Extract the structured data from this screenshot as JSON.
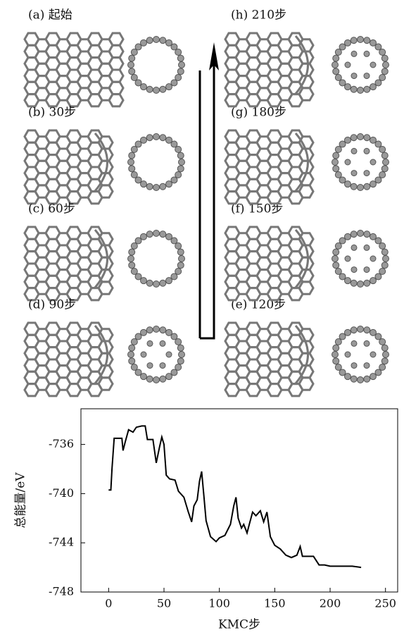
{
  "panels": [
    "(a) 起始",
    "(b) 30步",
    "(c) 60步",
    "(d) 90步",
    "(e) 120步",
    "(f) 150步",
    "(g) 180步",
    "(h) 210步"
  ],
  "chart_data": {
    "type": "line",
    "x_label": "KMC步",
    "y_label": "总能量/eV",
    "color": "#000000",
    "x": [
      0,
      2,
      3,
      5,
      12,
      13,
      15,
      18,
      22,
      25,
      30,
      33,
      35,
      40,
      43,
      46,
      48,
      50,
      52,
      55,
      60,
      63,
      68,
      72,
      75,
      77,
      80,
      82,
      84,
      86,
      88,
      92,
      97,
      100,
      105,
      110,
      113,
      115,
      117,
      120,
      122,
      125,
      127,
      130,
      133,
      137,
      140,
      143,
      146,
      150,
      155,
      160,
      165,
      170,
      173,
      175,
      185,
      190,
      195,
      200,
      210,
      220,
      228
    ],
    "values": [
      -739.7,
      -739.7,
      -738,
      -735.5,
      -735.5,
      -736.5,
      -735.8,
      -734.8,
      -735.0,
      -734.6,
      -734.5,
      -734.5,
      -735.6,
      -735.6,
      -737.5,
      -736.2,
      -735.4,
      -736,
      -738.5,
      -738.8,
      -738.9,
      -739.8,
      -740.3,
      -741.5,
      -742.3,
      -741,
      -740.5,
      -739,
      -738.2,
      -740.2,
      -742.2,
      -743.5,
      -743.9,
      -743.6,
      -743.4,
      -742.5,
      -741,
      -740.3,
      -742,
      -742.8,
      -742.5,
      -743.2,
      -742.5,
      -741.5,
      -741.8,
      -741.4,
      -742.3,
      -741.5,
      -743.5,
      -744.2,
      -744.5,
      -745.0,
      -745.2,
      -745.0,
      -744.3,
      -745.1,
      -745.1,
      -745.8,
      -745.8,
      -745.9,
      -745.9,
      -745.9,
      -746.0
    ],
    "xlim": [
      -25,
      261
    ],
    "ylim": [
      -748,
      -733.1
    ],
    "xticks": [
      0,
      50,
      100,
      150,
      200,
      250
    ],
    "yticks": [
      -736,
      -740,
      -744,
      -748
    ]
  }
}
